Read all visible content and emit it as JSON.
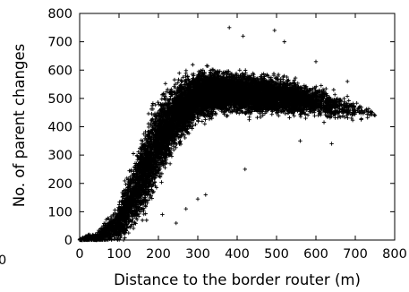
{
  "chart_data": {
    "type": "scatter",
    "title": "",
    "xlabel": "Distance to the border router (m)",
    "ylabel": "No. of parent changes",
    "xlim": [
      0,
      800
    ],
    "ylim": [
      0,
      800
    ],
    "xticks": [
      "0",
      "100",
      "200",
      "300",
      "400",
      "500",
      "600",
      "700",
      "800"
    ],
    "yticks": [
      "0",
      "100",
      "200",
      "300",
      "400",
      "500",
      "600",
      "700",
      "800"
    ],
    "stray_left_label": "0",
    "grid": false,
    "legend": "none",
    "marker": "plus",
    "marker_color": "#000000",
    "trend": {
      "x": [
        0,
        50,
        100,
        150,
        200,
        250,
        300,
        350,
        400,
        450,
        500,
        550,
        600,
        650,
        700,
        750
      ],
      "y": [
        0,
        10,
        60,
        200,
        350,
        450,
        510,
        525,
        520,
        515,
        510,
        500,
        490,
        470,
        460,
        440
      ],
      "spread": [
        4,
        20,
        50,
        110,
        110,
        85,
        70,
        60,
        55,
        55,
        50,
        45,
        40,
        35,
        25,
        15
      ],
      "density": [
        80,
        260,
        520,
        900,
        1100,
        1150,
        1200,
        1150,
        1050,
        950,
        800,
        600,
        380,
        180,
        60,
        12
      ]
    },
    "outliers": [
      {
        "x": 380,
        "y": 750
      },
      {
        "x": 495,
        "y": 740
      },
      {
        "x": 415,
        "y": 720
      },
      {
        "x": 520,
        "y": 700
      },
      {
        "x": 600,
        "y": 630
      },
      {
        "x": 680,
        "y": 560
      },
      {
        "x": 750,
        "y": 440
      },
      {
        "x": 715,
        "y": 425
      },
      {
        "x": 640,
        "y": 340
      },
      {
        "x": 560,
        "y": 350
      },
      {
        "x": 420,
        "y": 250
      },
      {
        "x": 320,
        "y": 160
      },
      {
        "x": 270,
        "y": 110
      },
      {
        "x": 300,
        "y": 145
      },
      {
        "x": 210,
        "y": 90
      },
      {
        "x": 245,
        "y": 60
      },
      {
        "x": 170,
        "y": 70
      }
    ]
  }
}
